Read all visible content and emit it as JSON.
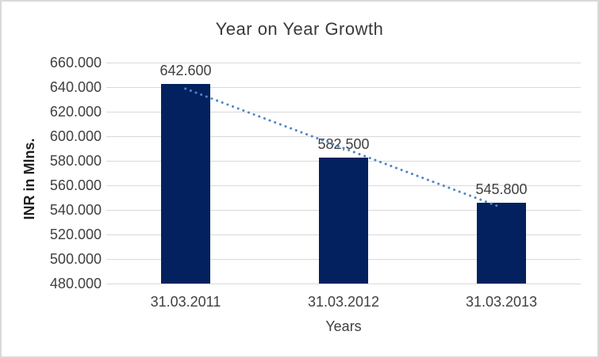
{
  "chart_data": {
    "type": "bar",
    "title": "Year on Year Growth",
    "xlabel": "Years",
    "ylabel": "INR in Mlns.",
    "categories": [
      "31.03.2011",
      "31.03.2012",
      "31.03.2013"
    ],
    "values": [
      642.6,
      582.5,
      545.8
    ],
    "data_labels": [
      "642.600",
      "582,500",
      "545.800"
    ],
    "y_ticks": [
      "660.000",
      "640.000",
      "620.000",
      "600.000",
      "580.000",
      "560.000",
      "540.000",
      "520.000",
      "500.000",
      "480.000"
    ],
    "ylim": [
      480,
      660
    ],
    "y_tick_step": 20,
    "grid": true,
    "legend": "none",
    "trendline": {
      "type": "linear",
      "style": "dotted",
      "values": [
        638.73,
        590.3,
        541.87
      ]
    },
    "colors": {
      "bar": "#03215f",
      "trendline": "#4e86c6",
      "gridline": "#d9d9d9",
      "text": "#404040",
      "title": "#3a3a3a",
      "border": "#d9d9d9",
      "background": "#ffffff"
    }
  }
}
